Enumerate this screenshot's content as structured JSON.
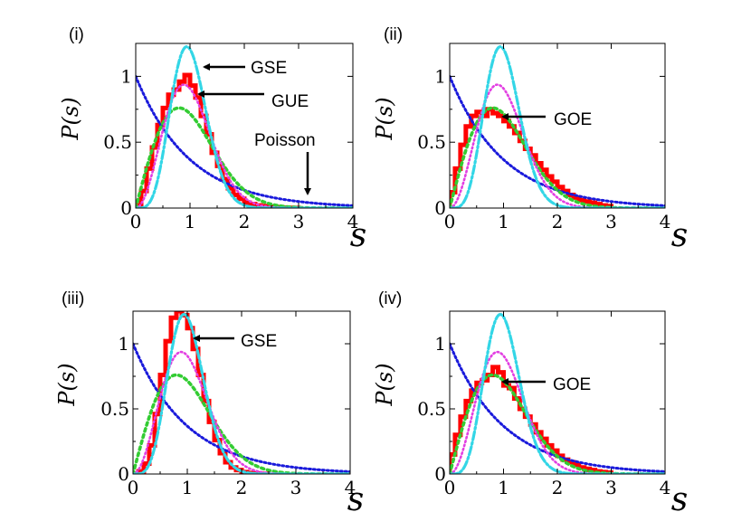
{
  "chart_data": [
    {
      "type": "line",
      "panel_label": "(i)",
      "xlabel": "s",
      "ylabel": "P(s)",
      "xlim": [
        0,
        4
      ],
      "ylim": [
        0,
        1.25
      ],
      "x_ticks": [
        "0",
        "1",
        "2",
        "3",
        "4"
      ],
      "y_ticks": [
        "0",
        "0.5",
        "1"
      ],
      "curves": [
        "Poisson",
        "GOE",
        "GUE",
        "GSE"
      ],
      "annotations": [
        {
          "text": "GSE",
          "target": "GSE"
        },
        {
          "text": "GUE",
          "target": "GUE"
        },
        {
          "text": "Poisson",
          "target": "Poisson"
        }
      ],
      "histogram": {
        "bin_width": 0.1,
        "values": [
          0.02,
          0.13,
          0.3,
          0.46,
          0.63,
          0.76,
          0.86,
          0.9,
          0.96,
          1.01,
          0.93,
          0.84,
          0.7,
          0.56,
          0.42,
          0.32,
          0.22,
          0.15,
          0.1,
          0.07,
          0.04,
          0.03,
          0.02,
          0.015,
          0.01,
          0.008,
          0.005,
          0.003,
          0.002,
          0.001
        ]
      }
    },
    {
      "type": "line",
      "panel_label": "(ii)",
      "xlabel": "s",
      "ylabel": "P(s)",
      "xlim": [
        0,
        4
      ],
      "ylim": [
        0,
        1.25
      ],
      "x_ticks": [
        "0",
        "1",
        "2",
        "3",
        "4"
      ],
      "y_ticks": [
        "0",
        "0.5",
        "1"
      ],
      "curves": [
        "Poisson",
        "GOE",
        "GUE",
        "GSE"
      ],
      "annotations": [
        {
          "text": "GOE",
          "target": "GOE"
        }
      ],
      "histogram": {
        "bin_width": 0.1,
        "values": [
          0.12,
          0.3,
          0.48,
          0.62,
          0.7,
          0.73,
          0.7,
          0.75,
          0.72,
          0.7,
          0.66,
          0.62,
          0.57,
          0.51,
          0.45,
          0.4,
          0.34,
          0.29,
          0.24,
          0.2,
          0.16,
          0.13,
          0.1,
          0.08,
          0.06,
          0.05,
          0.04,
          0.03,
          0.02,
          0.015
        ]
      }
    },
    {
      "type": "line",
      "panel_label": "(iii)",
      "xlabel": "s",
      "ylabel": "P(s)",
      "xlim": [
        0,
        4
      ],
      "ylim": [
        0,
        1.25
      ],
      "x_ticks": [
        "0",
        "1",
        "2",
        "3",
        "4"
      ],
      "y_ticks": [
        "0",
        "0.5",
        "1"
      ],
      "curves": [
        "Poisson",
        "GOE",
        "GUE",
        "GSE"
      ],
      "annotations": [
        {
          "text": "GSE",
          "target": "GSE"
        }
      ],
      "histogram": {
        "bin_width": 0.1,
        "values": [
          0.0,
          0.02,
          0.08,
          0.22,
          0.46,
          0.76,
          1.02,
          1.2,
          1.25,
          1.22,
          1.12,
          0.96,
          0.76,
          0.56,
          0.4,
          0.26,
          0.16,
          0.09,
          0.05,
          0.03,
          0.015,
          0.008,
          0.004,
          0.002,
          0.001
        ]
      }
    },
    {
      "type": "line",
      "panel_label": "(iv)",
      "xlabel": "s",
      "ylabel": "P(s)",
      "xlim": [
        0,
        4
      ],
      "ylim": [
        0,
        1.25
      ],
      "x_ticks": [
        "0",
        "1",
        "2",
        "3",
        "4"
      ],
      "y_ticks": [
        "0",
        "0.5",
        "1"
      ],
      "curves": [
        "Poisson",
        "GOE",
        "GUE",
        "GSE"
      ],
      "annotations": [
        {
          "text": "GOE",
          "target": "GOE"
        }
      ],
      "histogram": {
        "bin_width": 0.1,
        "values": [
          0.15,
          0.3,
          0.44,
          0.56,
          0.64,
          0.7,
          0.72,
          0.76,
          0.82,
          0.78,
          0.68,
          0.66,
          0.58,
          0.5,
          0.44,
          0.38,
          0.32,
          0.27,
          0.22,
          0.18,
          0.14,
          0.11,
          0.09,
          0.07,
          0.05,
          0.04,
          0.03,
          0.02,
          0.015,
          0.01
        ]
      }
    }
  ],
  "colors": {
    "histogram": "#ff0000",
    "poisson": "#1a1adb",
    "goe": "#33cc33",
    "gue": "#e23fe2",
    "gse": "#33d6e6",
    "axes": "#000000"
  }
}
